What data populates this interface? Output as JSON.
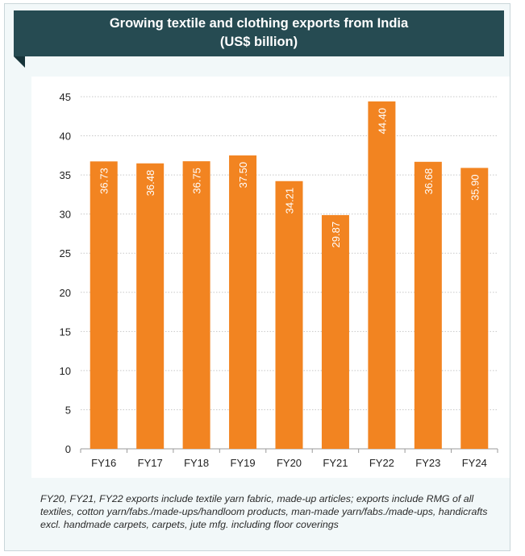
{
  "header": {
    "title": "Growing textile and clothing exports from India",
    "subtitle": "(US$ billion)"
  },
  "footnote": "FY20, FY21, FY22 exports include textile yarn fabric, made-up articles; exports include RMG of all textiles, cotton yarn/fabs./made-ups/handloom products, man-made yarn/fabs./made-ups, handicrafts excl. handmade carpets, carpets, jute mfg. including floor coverings",
  "chart_data": {
    "type": "bar",
    "title": "Growing textile and clothing exports from India",
    "subtitle": "(US$ billion)",
    "categories": [
      "FY16",
      "FY17",
      "FY18",
      "FY19",
      "FY20",
      "FY21",
      "FY22",
      "FY23",
      "FY24"
    ],
    "values": [
      36.73,
      36.48,
      36.75,
      37.5,
      34.21,
      29.87,
      44.4,
      36.68,
      35.9
    ],
    "value_labels": [
      "36.73",
      "36.48",
      "36.75",
      "37.50",
      "34.21",
      "29.87",
      "44.40",
      "36.68",
      "35.90"
    ],
    "yticks": [
      "0",
      "5",
      "10",
      "15",
      "20",
      "25",
      "30",
      "35",
      "40",
      "45"
    ],
    "ylim": [
      0,
      45
    ],
    "grid": true,
    "legend": "none",
    "bar_color": "#f28421",
    "label_color": "#ffffff"
  },
  "colors": {
    "header_bg": "#264b52",
    "card_bg": "#f2f8f9",
    "bar": "#f28421"
  }
}
